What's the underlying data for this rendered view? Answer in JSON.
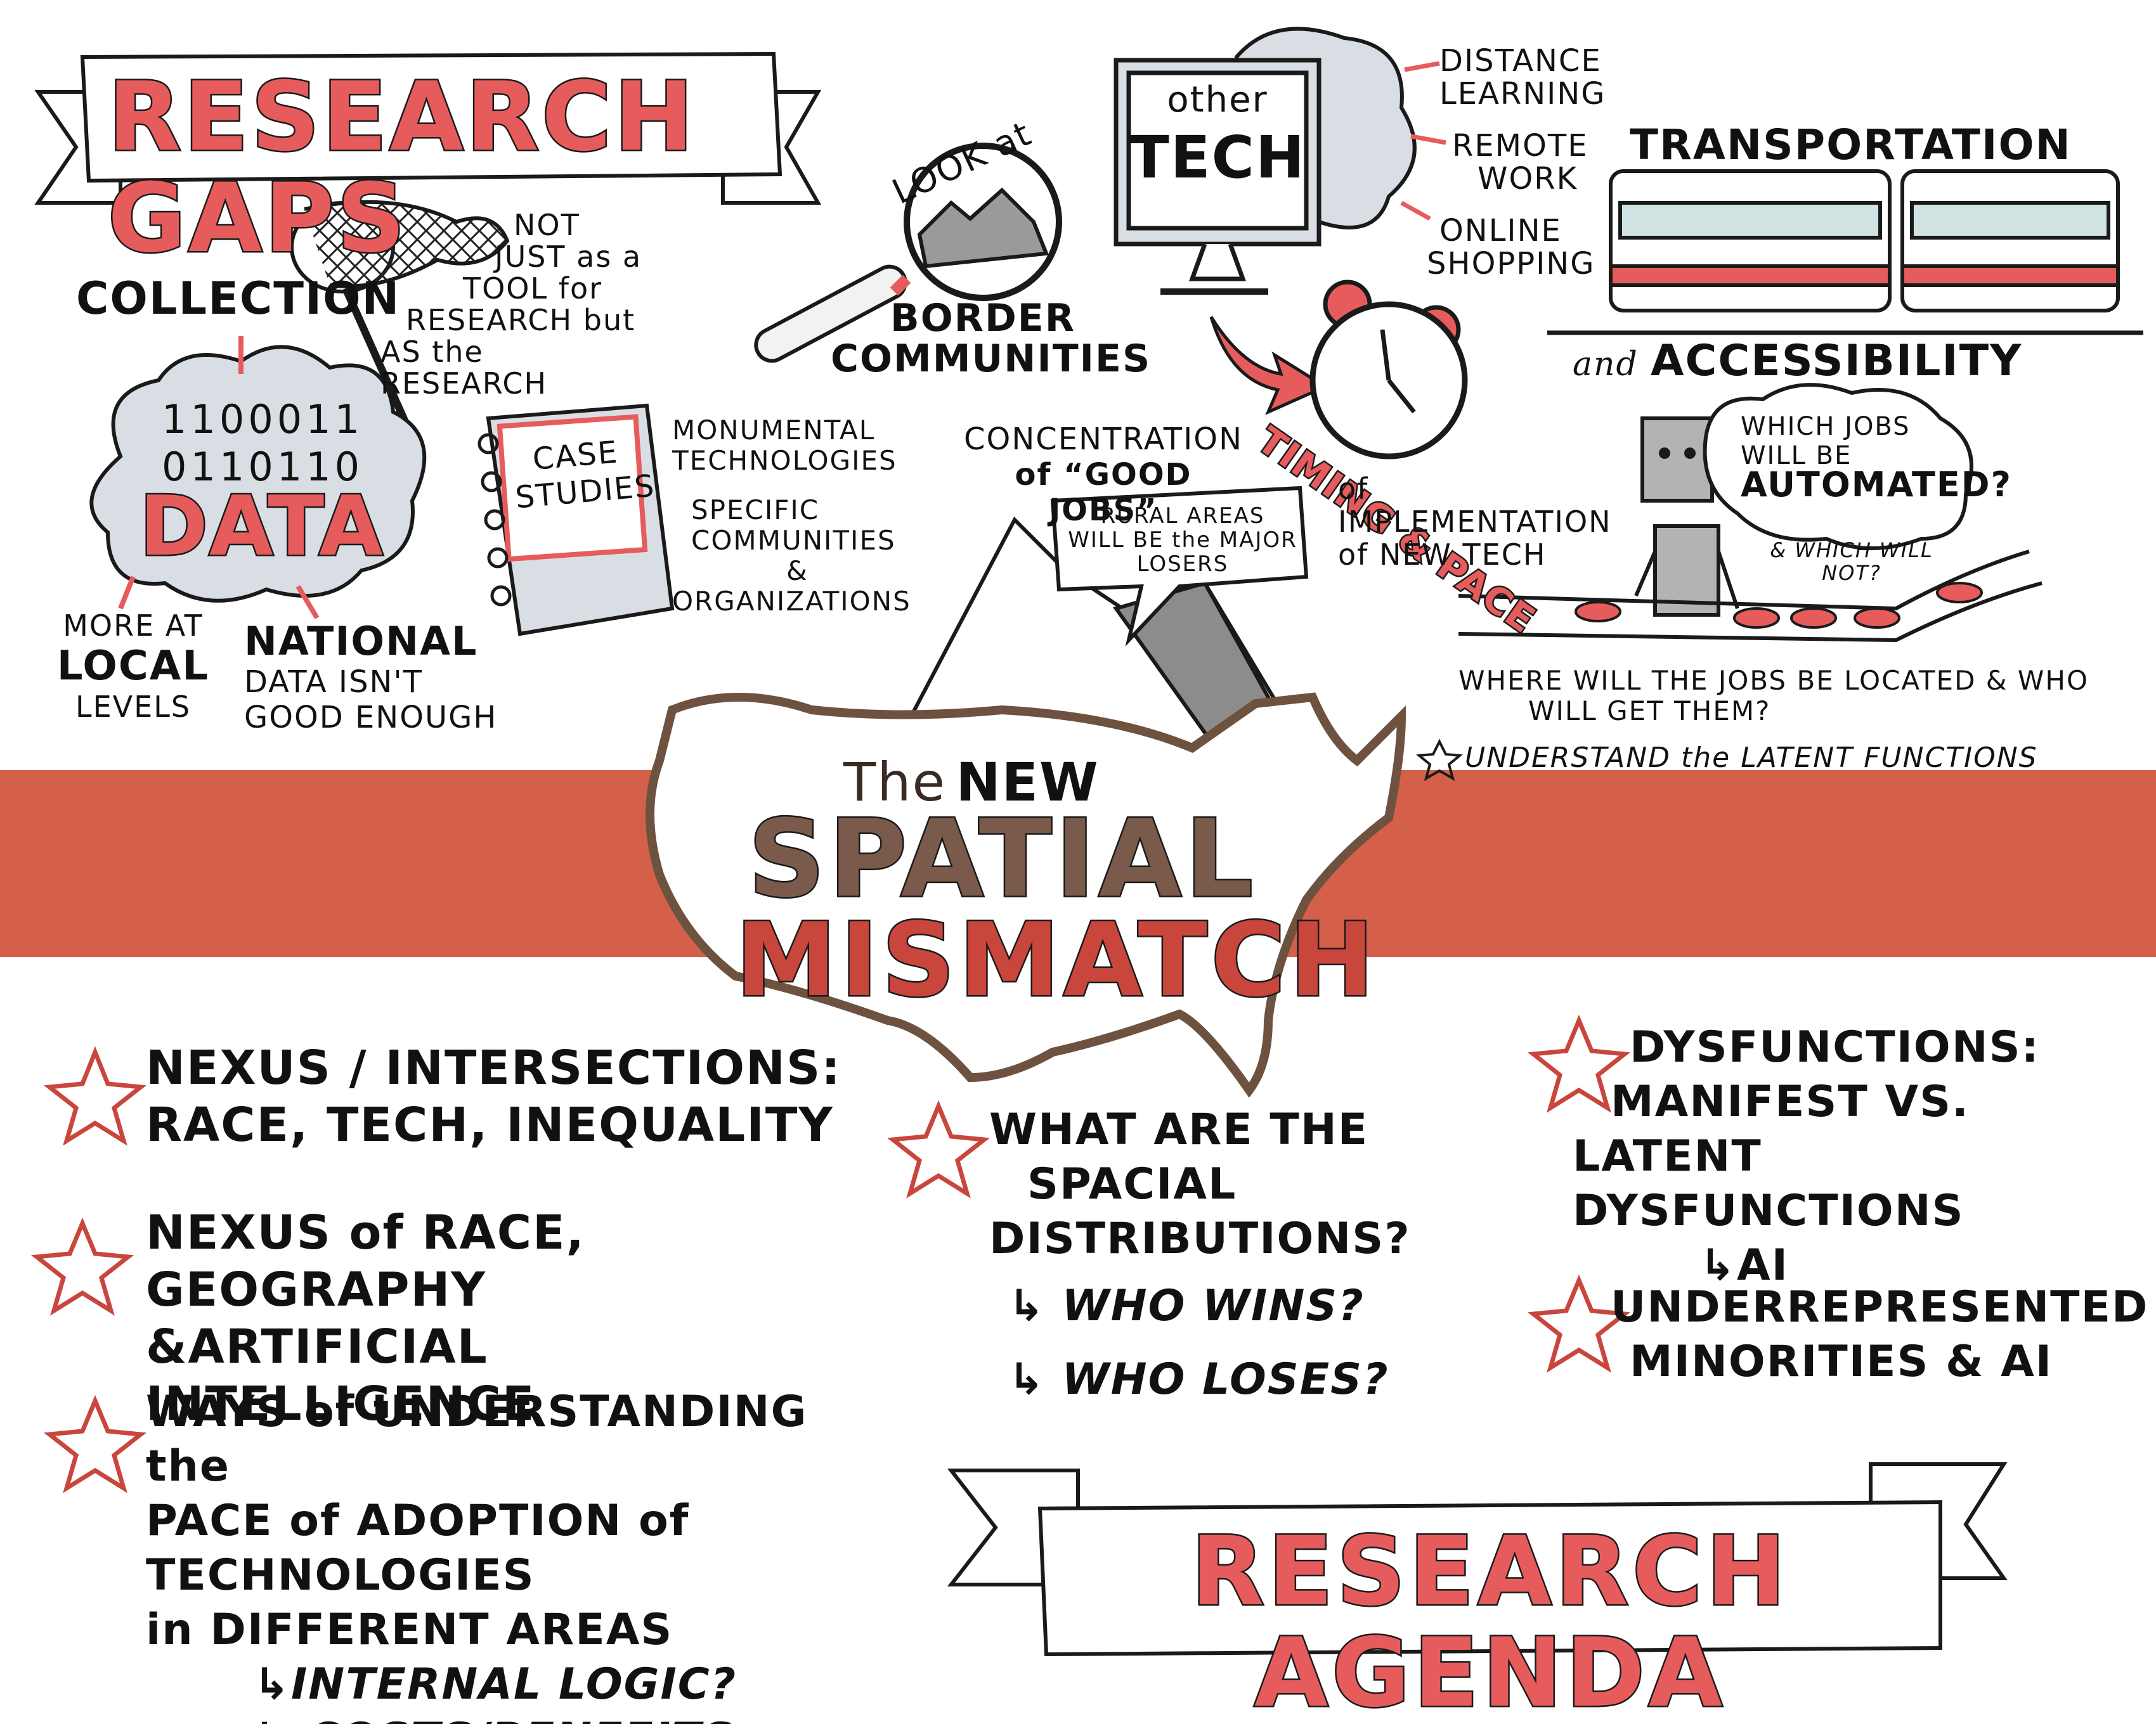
{
  "title": {
    "line1_the": "The",
    "line1_new": "NEW",
    "line2": "SPATIAL",
    "line3": "MISMATCH"
  },
  "research_gaps": {
    "banner": "RESEARCH GAPS",
    "collection": "COLLECTION",
    "not_just": [
      "NOT",
      "JUST as a",
      "TOOL for",
      "RESEARCH but",
      "AS the RESEARCH"
    ],
    "data_cloud": {
      "binary1": "1100011",
      "binary2": "0110110",
      "label": "DATA"
    },
    "more_at_local": [
      "MORE AT",
      "LOCAL",
      "LEVELS"
    ],
    "national": [
      "NATIONAL",
      "DATA ISN'T",
      "GOOD ENOUGH"
    ],
    "look_at": "LOOK at",
    "border_communities": [
      "BORDER",
      "COMMUNITIES"
    ],
    "case_studies": [
      "CASE",
      "STUDIES"
    ],
    "case_list": [
      "MONUMENTAL",
      "TECHNOLOGIES",
      "SPECIFIC",
      "COMMUNITIES",
      "&",
      "ORGANIZATIONS"
    ],
    "other_tech": {
      "other": "other",
      "tech": "TECH"
    },
    "tech_list": [
      "DISTANCE",
      "LEARNING",
      "REMOTE",
      "WORK",
      "ONLINE",
      "SHOPPING"
    ],
    "timing_pace": "TIMING & PACE",
    "implementation": [
      "of IMPLEMENTATION",
      "of NEW TECH"
    ],
    "transportation": "TRANSPORTATION",
    "and_accessibility_and": "and",
    "accessibility": "ACCESSIBILITY",
    "concentration": [
      "CONCENTRATION",
      "of “GOOD JOBS”"
    ],
    "rural_callout": [
      "RURAL AREAS",
      "WILL BE the MAJOR",
      "LOSERS"
    ],
    "automation_bubble": [
      "WHICH JOBS",
      "WILL BE",
      "AUTOMATED?"
    ],
    "which_will_not": [
      "& WHICH WILL",
      "NOT?"
    ],
    "where_jobs": [
      "WHERE WILL THE JOBS BE LOCATED & WHO",
      "WILL GET THEM?"
    ],
    "latent_functions": "UNDERSTAND the LATENT FUNCTIONS"
  },
  "research_agenda": {
    "banner": "RESEARCH AGENDA",
    "left_items": [
      {
        "lines": [
          "NEXUS / INTERSECTIONS:",
          "RACE, TECH, INEQUALITY"
        ]
      },
      {
        "lines": [
          "NEXUS of RACE, GEOGRAPHY",
          "&ARTIFICIAL INTELLIGENCE"
        ]
      },
      {
        "lines": [
          "WAYS of UNDERSTANDING the",
          "PACE of ADOPTION of TECHNOLOGIES",
          "in DIFFERENT AREAS"
        ],
        "subs": [
          "↳INTERNAL LOGIC?",
          "↳ COSTS/BENEFITS"
        ]
      }
    ],
    "middle_item": {
      "lines": [
        "WHAT ARE THE",
        "SPACIAL",
        "DISTRIBUTIONS?"
      ],
      "subs": [
        "↳ WHO WINS?",
        "↳ WHO LOSES?"
      ]
    },
    "right_items": [
      {
        "lines": [
          "DYSFUNCTIONS:",
          "MANIFEST VS.",
          "LATENT DYSFUNCTIONS"
        ],
        "subs": [
          "↳AI"
        ]
      },
      {
        "lines": [
          "UNDERREPRESENTED",
          "MINORITIES & AI"
        ]
      }
    ]
  },
  "colors": {
    "accent_red": "#e65c5c",
    "band_red": "#d0523b",
    "brown": "#7a5a4a",
    "ink": "#1a1a1a",
    "gray": "#8c8c8c",
    "cloud": "#d9dee4"
  },
  "icons": [
    "butterfly-net-icon",
    "magnifier-icon",
    "monitor-icon",
    "alarm-clock-icon",
    "train-icon",
    "robot-icon",
    "conveyor-belt-icon",
    "mountain-icon",
    "usa-map-icon",
    "star-icon",
    "arrow-icon"
  ]
}
